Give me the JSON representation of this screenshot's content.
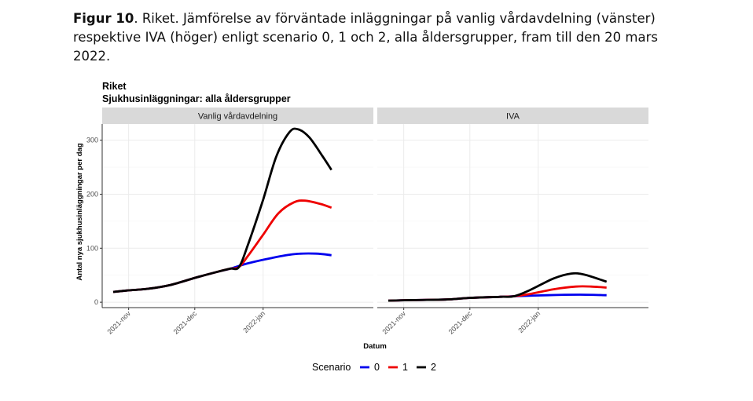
{
  "caption": {
    "label": "Figur 10",
    "text": ". Riket. Jämförelse av förväntade inläggningar på vanlig vårdavdelning (vänster) respektive IVA (höger) enligt scenario 0, 1 och 2, alla åldersgrupper, fram till den 20 mars 2022."
  },
  "chart_data": {
    "type": "line",
    "title": "Riket",
    "subtitle": "Sjukhusinläggningar: alla åldersgrupper",
    "xlabel": "Datum",
    "ylabel": "Antal nya sjukhusinläggningar per dag",
    "ylim": [
      -10,
      330
    ],
    "yticks": [
      0,
      100,
      200,
      300
    ],
    "xlim": [
      "2021-10-20",
      "2022-02-20"
    ],
    "xticks": [
      {
        "date": "2021-11-01",
        "label": "2021-nov"
      },
      {
        "date": "2021-12-01",
        "label": "2021-dec"
      },
      {
        "date": "2022-01-01",
        "label": "2022-jan"
      }
    ],
    "grid": true,
    "legend": {
      "title": "Scenario",
      "position": "bottom"
    },
    "colors": {
      "0": "#0000ee",
      "1": "#ee0000",
      "2": "#000000"
    },
    "panels": [
      {
        "name": "Vanlig vårdavdelning",
        "series": [
          {
            "name": "0",
            "points": [
              [
                "2021-10-25",
                19
              ],
              [
                "2021-11-01",
                22
              ],
              [
                "2021-11-10",
                25
              ],
              [
                "2021-11-20",
                32
              ],
              [
                "2021-12-01",
                45
              ],
              [
                "2021-12-10",
                55
              ],
              [
                "2021-12-17",
                62
              ],
              [
                "2021-12-25",
                72
              ],
              [
                "2022-01-05",
                82
              ],
              [
                "2022-01-15",
                89
              ],
              [
                "2022-01-25",
                90
              ],
              [
                "2022-02-01",
                87
              ]
            ]
          },
          {
            "name": "1",
            "points": [
              [
                "2021-10-25",
                19
              ],
              [
                "2021-11-01",
                22
              ],
              [
                "2021-11-10",
                25
              ],
              [
                "2021-11-20",
                32
              ],
              [
                "2021-12-01",
                45
              ],
              [
                "2021-12-10",
                55
              ],
              [
                "2021-12-17",
                62
              ],
              [
                "2021-12-21",
                65
              ],
              [
                "2021-12-25",
                85
              ],
              [
                "2022-01-01",
                125
              ],
              [
                "2022-01-08",
                165
              ],
              [
                "2022-01-15",
                185
              ],
              [
                "2022-01-20",
                188
              ],
              [
                "2022-01-27",
                182
              ],
              [
                "2022-02-01",
                175
              ]
            ]
          },
          {
            "name": "2",
            "points": [
              [
                "2021-10-25",
                19
              ],
              [
                "2021-11-01",
                22
              ],
              [
                "2021-11-10",
                25
              ],
              [
                "2021-11-20",
                32
              ],
              [
                "2021-12-01",
                45
              ],
              [
                "2021-12-10",
                55
              ],
              [
                "2021-12-17",
                62
              ],
              [
                "2021-12-21",
                65
              ],
              [
                "2021-12-25",
                105
              ],
              [
                "2022-01-01",
                190
              ],
              [
                "2022-01-07",
                270
              ],
              [
                "2022-01-13",
                315
              ],
              [
                "2022-01-17",
                320
              ],
              [
                "2022-01-22",
                305
              ],
              [
                "2022-01-28",
                270
              ],
              [
                "2022-02-01",
                245
              ]
            ]
          }
        ]
      },
      {
        "name": "IVA",
        "series": [
          {
            "name": "0",
            "points": [
              [
                "2021-10-25",
                3
              ],
              [
                "2021-11-05",
                4
              ],
              [
                "2021-11-20",
                5
              ],
              [
                "2021-12-01",
                8
              ],
              [
                "2021-12-15",
                10
              ],
              [
                "2021-12-21",
                11
              ],
              [
                "2022-01-05",
                13
              ],
              [
                "2022-01-20",
                14
              ],
              [
                "2022-02-01",
                13
              ]
            ]
          },
          {
            "name": "1",
            "points": [
              [
                "2021-10-25",
                3
              ],
              [
                "2021-11-05",
                4
              ],
              [
                "2021-11-20",
                5
              ],
              [
                "2021-12-01",
                8
              ],
              [
                "2021-12-15",
                10
              ],
              [
                "2021-12-21",
                11
              ],
              [
                "2021-12-28",
                15
              ],
              [
                "2022-01-08",
                24
              ],
              [
                "2022-01-18",
                29
              ],
              [
                "2022-01-25",
                29
              ],
              [
                "2022-02-01",
                27
              ]
            ]
          },
          {
            "name": "2",
            "points": [
              [
                "2021-10-25",
                3
              ],
              [
                "2021-11-05",
                4
              ],
              [
                "2021-11-20",
                5
              ],
              [
                "2021-12-01",
                8
              ],
              [
                "2021-12-15",
                10
              ],
              [
                "2021-12-21",
                11
              ],
              [
                "2021-12-28",
                22
              ],
              [
                "2022-01-08",
                44
              ],
              [
                "2022-01-16",
                53
              ],
              [
                "2022-01-22",
                51
              ],
              [
                "2022-02-01",
                38
              ]
            ]
          }
        ]
      }
    ]
  }
}
